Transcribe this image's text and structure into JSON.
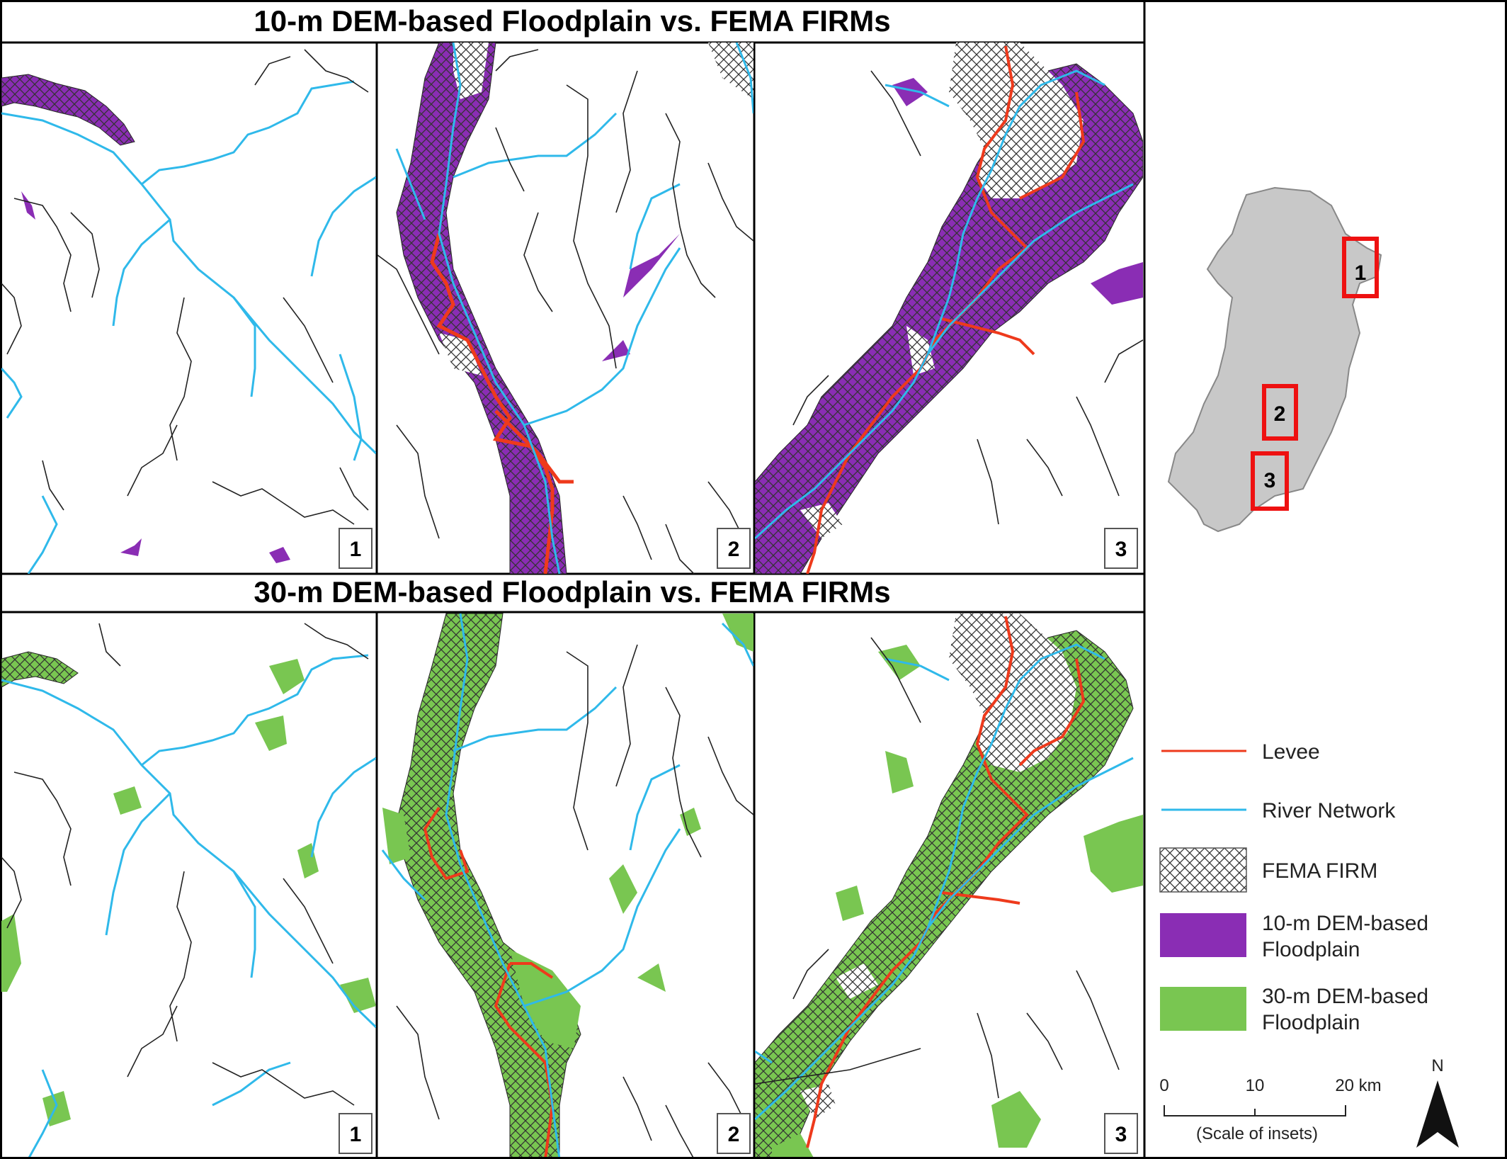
{
  "figure": {
    "top_title": "10-m DEM-based Floodplain vs. FEMA FIRMs",
    "bottom_title": "30-m DEM-based Floodplain vs. FEMA FIRMs",
    "panel_numbers": [
      "1",
      "2",
      "3"
    ],
    "locator_labels": [
      "1",
      "2",
      "3"
    ]
  },
  "legend": {
    "levee": "Levee",
    "river": "River Network",
    "fema": "FEMA FIRM",
    "fp10_line1": "10-m DEM-based",
    "fp10_line2": "Floodplain",
    "fp30_line1": "30-m DEM-based",
    "fp30_line2": "Floodplain"
  },
  "scale": {
    "tick0": "0",
    "tick1": "10",
    "tick2": "20 km",
    "caption": "(Scale of insets)"
  },
  "north": "N",
  "colors": {
    "levee": "#ee3a1c",
    "river": "#2fb9ea",
    "fp10": "#8a2db4",
    "fp30": "#79c651",
    "locator_fill": "#c8c8c8",
    "locator_box": "#ee1111"
  }
}
